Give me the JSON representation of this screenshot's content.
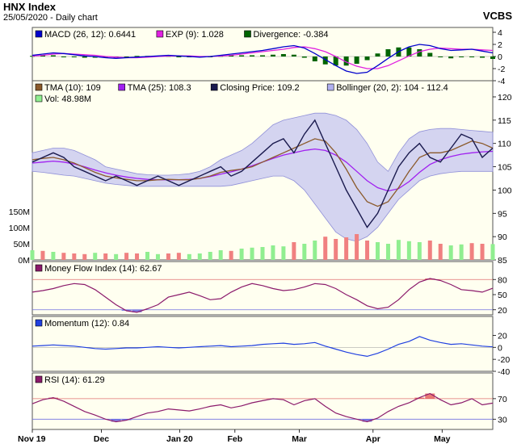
{
  "header": {
    "title": "HNX Index",
    "subtitle": "25/05/2020 - Daily chart",
    "brand": "VCBS"
  },
  "colors": {
    "macd": "#0000cc",
    "exp": "#e020e0",
    "divergence": "#006400",
    "tma10": "#8b5a2b",
    "tma25": "#a020f0",
    "close": "#1a1a4e",
    "bollinger": "#b0b0f0",
    "vol": "#90ee90",
    "vol_down": "#f08080",
    "mfi": "#8b1a6b",
    "momentum": "#2040e0",
    "rsi": "#8b1a6b",
    "panel_bg": "#fffff0",
    "panel_border": "#555555"
  },
  "chart_data": [
    {
      "type": "line",
      "panel": "macd",
      "legend": [
        {
          "label": "MACD (26, 12): 0.6441",
          "color": "#0000cc"
        },
        {
          "label": "EXP (9): 1.028",
          "color": "#e020e0"
        },
        {
          "label": "Divergence: -0.384",
          "color": "#006400"
        }
      ],
      "y_ticks": [
        "4",
        "2",
        "0",
        "-2",
        "-4"
      ],
      "ylim": [
        -4,
        4
      ],
      "series": [
        {
          "key": "macd",
          "values": [
            0.2,
            0.4,
            0.6,
            0.5,
            0.3,
            0.1,
            0.0,
            -0.2,
            -0.3,
            -0.2,
            -0.1,
            0.0,
            0.1,
            0.2,
            0.1,
            0.0,
            -0.1,
            0.0,
            0.2,
            0.4,
            0.6,
            0.8,
            1.0,
            1.3,
            1.6,
            1.8,
            1.4,
            0.5,
            -0.5,
            -1.5,
            -2.4,
            -2.8,
            -2.6,
            -1.5,
            -0.3,
            0.8,
            1.6,
            2.0,
            1.8,
            1.3,
            1.0,
            1.1,
            1.2,
            0.9,
            0.6
          ]
        },
        {
          "key": "exp",
          "values": [
            0.1,
            0.2,
            0.4,
            0.5,
            0.4,
            0.3,
            0.2,
            0.0,
            -0.1,
            -0.2,
            -0.2,
            -0.1,
            0.0,
            0.1,
            0.1,
            0.1,
            0.0,
            0.0,
            0.1,
            0.2,
            0.4,
            0.6,
            0.8,
            1.0,
            1.2,
            1.5,
            1.6,
            1.3,
            0.8,
            0.0,
            -0.9,
            -1.6,
            -2.0,
            -2.0,
            -1.5,
            -0.7,
            0.1,
            0.8,
            1.2,
            1.4,
            1.3,
            1.2,
            1.2,
            1.1,
            1.0
          ]
        },
        {
          "key": "divergence",
          "values": [
            0.1,
            0.2,
            0.2,
            0.0,
            -0.1,
            -0.2,
            -0.2,
            -0.2,
            -0.2,
            0.0,
            0.1,
            0.1,
            0.1,
            0.1,
            0.0,
            -0.1,
            -0.1,
            0.0,
            0.1,
            0.2,
            0.2,
            0.2,
            0.2,
            0.3,
            0.4,
            0.3,
            -0.2,
            -0.8,
            -1.3,
            -1.5,
            -1.5,
            -1.2,
            -0.6,
            0.5,
            1.2,
            1.5,
            1.5,
            1.2,
            0.6,
            -0.1,
            -0.3,
            -0.1,
            0.0,
            -0.2,
            -0.4
          ]
        }
      ]
    },
    {
      "type": "line",
      "panel": "price",
      "legend": [
        {
          "label": "TMA (10): 109",
          "color": "#8b5a2b"
        },
        {
          "label": "TMA (25): 108.3",
          "color": "#a020f0"
        },
        {
          "label": "Closing Price: 109.2",
          "color": "#1a1a4e"
        },
        {
          "label": "Bollinger (20, 2): 104 - 112.4",
          "color": "#b0b0f0"
        },
        {
          "label": "Vol: 48.98M",
          "color": "#90ee90"
        }
      ],
      "y_ticks": [
        "120",
        "115",
        "110",
        "105",
        "100",
        "95",
        "90",
        "85"
      ],
      "ylim": [
        85,
        120
      ],
      "vol_ticks": [
        "150M",
        "100M",
        "50M",
        "0M"
      ],
      "vol_lim": [
        0,
        150
      ],
      "series": [
        {
          "key": "close",
          "values": [
            106,
            107,
            108,
            107,
            105,
            104,
            103,
            102,
            103,
            102,
            101,
            102,
            103,
            102,
            101,
            102,
            103,
            104,
            105,
            103,
            104,
            106,
            108,
            110,
            111,
            108,
            112,
            115,
            110,
            105,
            100,
            96,
            92,
            95,
            100,
            105,
            108,
            110,
            107,
            106,
            109,
            112,
            111,
            107,
            109
          ]
        },
        {
          "key": "tma10",
          "values": [
            106.5,
            106.8,
            107,
            106.5,
            105.8,
            104.8,
            103.8,
            103,
            102.6,
            102.3,
            102,
            102,
            102.2,
            102.3,
            102.2,
            102.2,
            102.5,
            103,
            103.8,
            104.2,
            104.5,
            105,
            106,
            107,
            108,
            109,
            110,
            111,
            110.5,
            108,
            104.5,
            100.5,
            97.5,
            96.5,
            97.5,
            100.5,
            104,
            107,
            108,
            108,
            108.5,
            109.5,
            110.5,
            110,
            109
          ]
        },
        {
          "key": "tma25",
          "values": [
            105.8,
            106,
            106.2,
            106,
            105.6,
            105,
            104.3,
            103.7,
            103.2,
            102.8,
            102.5,
            102.3,
            102.2,
            102.2,
            102.2,
            102.3,
            102.5,
            102.9,
            103.4,
            103.9,
            104.5,
            105.2,
            106,
            106.8,
            107.5,
            108,
            108.5,
            108.8,
            108.5,
            107.5,
            106,
            104,
            102,
            100.5,
            99.8,
            100.3,
            101.8,
            103.8,
            105.5,
            106.5,
            107.2,
            107.7,
            108,
            108.2,
            108.3
          ]
        },
        {
          "key": "boll_upper",
          "values": [
            108,
            108.5,
            109,
            109,
            108.5,
            107.5,
            106.5,
            105,
            104.5,
            104,
            103.5,
            103.3,
            103.2,
            103.2,
            103.3,
            103.5,
            104,
            105,
            106.5,
            107.5,
            108.5,
            110,
            112,
            114,
            115,
            115.5,
            116,
            116.5,
            116.5,
            116,
            115,
            113,
            110,
            106,
            104,
            108,
            111,
            112.5,
            113,
            113.2,
            113.2,
            113,
            112.8,
            112.6,
            112.4
          ]
        },
        {
          "key": "boll_lower",
          "values": [
            104,
            103.8,
            103.5,
            103.2,
            103,
            102.5,
            102,
            101.5,
            101.2,
            101,
            100.8,
            100.8,
            100.8,
            100.8,
            100.8,
            100.8,
            100.8,
            100.8,
            100.8,
            101,
            101.5,
            102,
            102.5,
            103,
            103,
            102,
            100,
            97,
            94,
            91,
            89.5,
            89,
            90,
            92,
            95,
            98,
            100,
            102,
            103,
            103.5,
            103.8,
            104,
            104,
            104,
            104
          ]
        },
        {
          "key": "volume",
          "values": [
            30,
            28,
            25,
            22,
            20,
            18,
            22,
            20,
            18,
            22,
            20,
            25,
            18,
            20,
            22,
            18,
            20,
            25,
            30,
            28,
            35,
            38,
            40,
            45,
            42,
            55,
            50,
            60,
            72,
            65,
            70,
            80,
            60,
            55,
            50,
            62,
            58,
            55,
            60,
            50,
            45,
            48,
            52,
            50,
            49
          ]
        },
        {
          "key": "volume_up",
          "values": [
            1,
            0,
            1,
            0,
            0,
            0,
            1,
            0,
            1,
            0,
            0,
            1,
            1,
            0,
            0,
            1,
            1,
            1,
            1,
            0,
            1,
            1,
            1,
            1,
            1,
            0,
            1,
            1,
            0,
            0,
            0,
            0,
            0,
            1,
            1,
            1,
            1,
            1,
            0,
            0,
            1,
            1,
            0,
            0,
            1
          ]
        }
      ]
    },
    {
      "type": "line",
      "panel": "mfi",
      "legend": [
        {
          "label": "Money Flow Index (14): 62.67",
          "color": "#8b1a6b"
        }
      ],
      "y_ticks": [
        "80",
        "50",
        "20"
      ],
      "ylim": [
        10,
        90
      ],
      "series": [
        {
          "key": "mfi",
          "values": [
            55,
            58,
            62,
            68,
            72,
            70,
            60,
            45,
            30,
            18,
            15,
            22,
            30,
            45,
            50,
            55,
            48,
            40,
            42,
            55,
            65,
            72,
            68,
            62,
            58,
            60,
            65,
            72,
            70,
            62,
            50,
            40,
            28,
            22,
            25,
            40,
            60,
            75,
            82,
            78,
            70,
            60,
            58,
            55,
            62.67
          ]
        }
      ]
    },
    {
      "type": "line",
      "panel": "momentum",
      "legend": [
        {
          "label": "Momentum (12): 0.84",
          "color": "#2040e0"
        }
      ],
      "y_ticks": [
        "20",
        "0",
        "-20",
        "-40"
      ],
      "ylim": [
        -40,
        30
      ],
      "series": [
        {
          "key": "momentum",
          "values": [
            2,
            3,
            4,
            3,
            2,
            0,
            -2,
            -3,
            -2,
            -1,
            -1,
            0,
            1,
            0,
            -1,
            0,
            1,
            2,
            3,
            1,
            2,
            3,
            5,
            6,
            7,
            5,
            6,
            8,
            2,
            -3,
            -8,
            -12,
            -15,
            -10,
            -3,
            5,
            10,
            18,
            12,
            8,
            5,
            6,
            4,
            2,
            0.84
          ]
        }
      ]
    },
    {
      "type": "line",
      "panel": "rsi",
      "legend": [
        {
          "label": "RSI (14): 61.29",
          "color": "#8b1a6b"
        }
      ],
      "y_ticks": [
        "70",
        "30"
      ],
      "ylim": [
        10,
        95
      ],
      "series": [
        {
          "key": "rsi",
          "values": [
            60,
            68,
            72,
            65,
            55,
            45,
            38,
            30,
            25,
            28,
            35,
            42,
            45,
            50,
            48,
            46,
            50,
            55,
            58,
            52,
            56,
            62,
            66,
            70,
            68,
            58,
            66,
            70,
            55,
            42,
            35,
            30,
            25,
            32,
            45,
            55,
            62,
            72,
            80,
            68,
            58,
            62,
            70,
            58,
            61.29
          ]
        }
      ]
    }
  ],
  "x_ticks": [
    "Nov 19",
    "Dec",
    "Jan 20",
    "Feb",
    "Mar",
    "Apr",
    "May"
  ]
}
